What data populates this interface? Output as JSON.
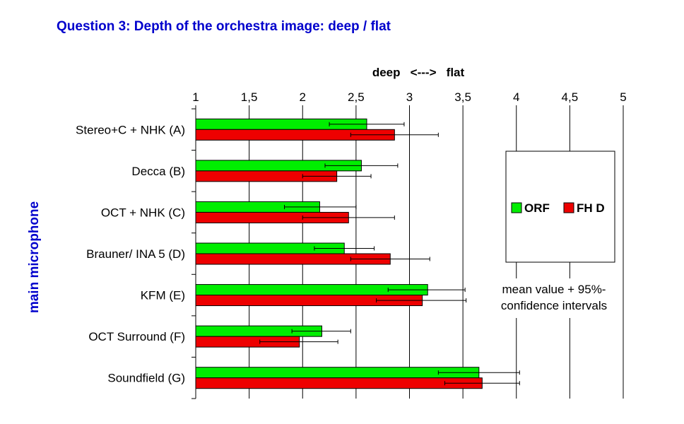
{
  "colors": {
    "title": "#0000cc",
    "ylabel": "#0000cc",
    "series_orf": "#00ee00",
    "series_fhd": "#ee0000",
    "grid": "#000000"
  },
  "chart_data": {
    "type": "bar",
    "orientation": "horizontal",
    "title": "Question 3: Depth of the orchestra image: deep / flat",
    "xlabel": "deep   <--->   flat",
    "ylabel": "main microphone",
    "xlim": [
      1,
      5
    ],
    "xticks": [
      "1",
      "1,5",
      "2",
      "2,5",
      "3",
      "3,5",
      "4",
      "4,5",
      "5"
    ],
    "xtick_values": [
      1,
      1.5,
      2,
      2.5,
      3,
      3.5,
      4,
      4.5,
      5
    ],
    "grid": "vertical",
    "legend_placement": "right",
    "annotation": [
      "mean value + 95%-",
      "confidence intervals"
    ],
    "categories": [
      "Stereo+C + NHK (A)",
      "Decca (B)",
      "OCT + NHK (C)",
      "Brauner/ INA 5 (D)",
      "KFM (E)",
      "OCT Surround (F)",
      "Soundfield (G)"
    ],
    "series": [
      {
        "name": "ORF",
        "values": [
          2.6,
          2.55,
          2.16,
          2.39,
          3.17,
          2.18,
          3.65
        ],
        "ci_low": [
          2.25,
          2.21,
          1.83,
          2.11,
          2.8,
          1.9,
          3.27
        ],
        "ci_high": [
          2.95,
          2.89,
          2.5,
          2.67,
          3.52,
          2.45,
          4.03
        ]
      },
      {
        "name": "FH D",
        "values": [
          2.86,
          2.32,
          2.43,
          2.82,
          3.12,
          1.97,
          3.68
        ],
        "ci_low": [
          2.45,
          2.0,
          2.0,
          2.45,
          2.69,
          1.6,
          3.33
        ],
        "ci_high": [
          3.27,
          2.64,
          2.86,
          3.19,
          3.53,
          2.33,
          4.03
        ]
      }
    ]
  }
}
